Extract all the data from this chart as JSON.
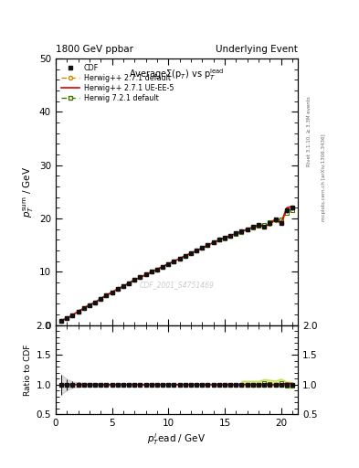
{
  "title_left": "1800 GeV ppbar",
  "title_right": "Underlying Event",
  "plot_title": "AverageΣ(p_T) vs p_T^{lead}",
  "xlabel": "p_T^l ead / GeV",
  "ylabel_main": "p_T^{sum} / GeV",
  "ylabel_ratio": "Ratio to CDF",
  "watermark": "CDF_2001_S4751469",
  "right_label": "Rivet 3.1.10, ≥ 3.3M events",
  "right_label2": "mcplots.cern.ch [arXiv:1306.3436]",
  "xlim": [
    0,
    21.5
  ],
  "ylim_main": [
    0,
    50
  ],
  "ylim_ratio": [
    0.5,
    2.0
  ],
  "xticks": [
    0,
    5,
    10,
    15,
    20
  ],
  "yticks_main": [
    0,
    10,
    20,
    30,
    40,
    50
  ],
  "yticks_ratio": [
    0.5,
    1.0,
    1.5,
    2.0
  ],
  "cdf_x": [
    0.5,
    1.0,
    1.5,
    2.0,
    2.5,
    3.0,
    3.5,
    4.0,
    4.5,
    5.0,
    5.5,
    6.0,
    6.5,
    7.0,
    7.5,
    8.0,
    8.5,
    9.0,
    9.5,
    10.0,
    10.5,
    11.0,
    11.5,
    12.0,
    12.5,
    13.0,
    13.5,
    14.0,
    14.5,
    15.0,
    15.5,
    16.0,
    16.5,
    17.0,
    17.5,
    18.0,
    18.5,
    19.0,
    19.5,
    20.0,
    20.5,
    21.0
  ],
  "cdf_y": [
    0.9,
    1.3,
    1.9,
    2.6,
    3.2,
    3.8,
    4.3,
    5.0,
    5.6,
    6.2,
    6.8,
    7.3,
    7.9,
    8.5,
    9.0,
    9.5,
    10.0,
    10.5,
    11.0,
    11.5,
    12.0,
    12.5,
    13.0,
    13.5,
    14.0,
    14.5,
    15.0,
    15.5,
    16.0,
    16.4,
    16.8,
    17.2,
    17.6,
    18.0,
    18.4,
    18.8,
    18.5,
    19.2,
    19.8,
    19.2,
    21.5,
    22.0
  ],
  "cdf_yerr": [
    0.15,
    0.12,
    0.1,
    0.1,
    0.1,
    0.1,
    0.1,
    0.1,
    0.1,
    0.1,
    0.1,
    0.1,
    0.1,
    0.1,
    0.1,
    0.1,
    0.1,
    0.1,
    0.1,
    0.1,
    0.1,
    0.12,
    0.15,
    0.15,
    0.15,
    0.15,
    0.2,
    0.2,
    0.2,
    0.2,
    0.2,
    0.2,
    0.2,
    0.2,
    0.2,
    0.2,
    0.25,
    0.25,
    0.3,
    0.35,
    0.45,
    0.5
  ],
  "hw271_x": [
    0.5,
    1.0,
    1.5,
    2.0,
    2.5,
    3.0,
    3.5,
    4.0,
    4.5,
    5.0,
    5.5,
    6.0,
    6.5,
    7.0,
    7.5,
    8.0,
    8.5,
    9.0,
    9.5,
    10.0,
    10.5,
    11.0,
    11.5,
    12.0,
    12.5,
    13.0,
    13.5,
    14.0,
    14.5,
    15.0,
    15.5,
    16.0,
    16.5,
    17.0,
    17.5,
    18.0,
    18.5,
    19.0,
    19.5,
    20.0,
    20.5,
    21.0
  ],
  "hw271_y": [
    0.9,
    1.3,
    1.9,
    2.6,
    3.2,
    3.8,
    4.3,
    5.0,
    5.6,
    6.2,
    6.8,
    7.3,
    7.9,
    8.5,
    9.0,
    9.5,
    10.0,
    10.5,
    11.0,
    11.5,
    12.0,
    12.5,
    13.0,
    13.5,
    14.0,
    14.5,
    15.0,
    15.5,
    16.0,
    16.4,
    16.8,
    17.2,
    17.6,
    18.0,
    18.4,
    18.8,
    18.5,
    19.0,
    19.6,
    19.1,
    21.3,
    21.8
  ],
  "hw271ue_x": [
    0.5,
    1.0,
    1.5,
    2.0,
    2.5,
    3.0,
    3.5,
    4.0,
    4.5,
    5.0,
    5.5,
    6.0,
    6.5,
    7.0,
    7.5,
    8.0,
    8.5,
    9.0,
    9.5,
    10.0,
    10.5,
    11.0,
    11.5,
    12.0,
    12.5,
    13.0,
    13.5,
    14.0,
    14.5,
    15.0,
    15.5,
    16.0,
    16.5,
    17.0,
    17.5,
    18.0,
    18.5,
    19.0,
    19.5,
    20.0,
    20.5,
    21.0
  ],
  "hw271ue_y": [
    0.9,
    1.3,
    1.9,
    2.6,
    3.2,
    3.8,
    4.3,
    5.0,
    5.6,
    6.2,
    6.8,
    7.3,
    7.9,
    8.5,
    9.0,
    9.5,
    10.0,
    10.5,
    11.0,
    11.5,
    12.0,
    12.5,
    13.0,
    13.5,
    14.0,
    14.5,
    15.0,
    15.5,
    16.0,
    16.4,
    16.8,
    17.2,
    17.6,
    18.0,
    18.4,
    18.8,
    18.5,
    19.0,
    19.8,
    19.2,
    22.0,
    22.3
  ],
  "hw721_x": [
    0.5,
    1.0,
    1.5,
    2.0,
    2.5,
    3.0,
    3.5,
    4.0,
    4.5,
    5.0,
    5.5,
    6.0,
    6.5,
    7.0,
    7.5,
    8.0,
    8.5,
    9.0,
    9.5,
    10.0,
    10.5,
    11.0,
    11.5,
    12.0,
    12.5,
    13.0,
    13.5,
    14.0,
    14.5,
    15.0,
    15.5,
    16.0,
    16.5,
    17.0,
    17.5,
    18.0,
    18.5,
    19.0,
    19.5,
    20.0,
    20.5,
    21.0
  ],
  "hw721_y": [
    0.9,
    1.3,
    1.9,
    2.6,
    3.2,
    3.8,
    4.3,
    5.0,
    5.6,
    6.2,
    6.8,
    7.3,
    7.9,
    8.5,
    9.0,
    9.5,
    10.0,
    10.5,
    11.0,
    11.5,
    12.0,
    12.5,
    13.0,
    13.5,
    14.0,
    14.5,
    15.0,
    15.5,
    16.0,
    16.3,
    16.7,
    17.1,
    17.5,
    17.9,
    18.3,
    18.7,
    18.9,
    19.4,
    19.8,
    19.8,
    21.0,
    21.5
  ],
  "color_cdf": "#111111",
  "color_hw271": "#cc8800",
  "color_hw271ue": "#dd0000",
  "color_hw721": "#447700",
  "bg_color": "#ffffff",
  "watermark_color": "#cccccc",
  "band_color_hw721": "#aacc00",
  "band_alpha_hw721": 0.45
}
